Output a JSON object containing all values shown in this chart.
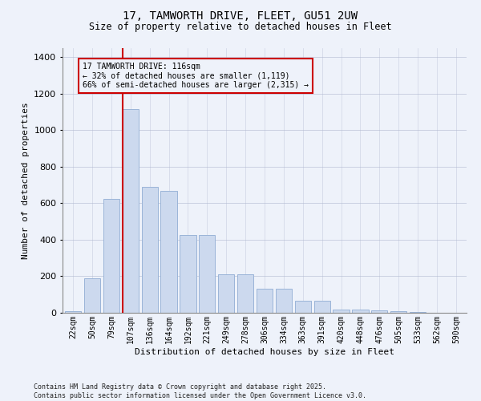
{
  "title1": "17, TAMWORTH DRIVE, FLEET, GU51 2UW",
  "title2": "Size of property relative to detached houses in Fleet",
  "xlabel": "Distribution of detached houses by size in Fleet",
  "ylabel": "Number of detached properties",
  "categories": [
    "22sqm",
    "50sqm",
    "79sqm",
    "107sqm",
    "136sqm",
    "164sqm",
    "192sqm",
    "221sqm",
    "249sqm",
    "278sqm",
    "306sqm",
    "334sqm",
    "363sqm",
    "391sqm",
    "420sqm",
    "448sqm",
    "476sqm",
    "505sqm",
    "533sqm",
    "562sqm",
    "590sqm"
  ],
  "values": [
    10,
    190,
    625,
    1115,
    690,
    670,
    425,
    425,
    210,
    210,
    130,
    130,
    65,
    65,
    18,
    18,
    12,
    7,
    4,
    2,
    2
  ],
  "bar_color": "#ccd9ee",
  "bar_edge_color": "#9ab4d8",
  "vline_x": 3,
  "vline_color": "#cc0000",
  "annotation_title": "17 TAMWORTH DRIVE: 116sqm",
  "annotation_line1": "← 32% of detached houses are smaller (1,119)",
  "annotation_line2": "66% of semi-detached houses are larger (2,315) →",
  "annotation_box_color": "#cc0000",
  "background_color": "#eef2fa",
  "footer1": "Contains HM Land Registry data © Crown copyright and database right 2025.",
  "footer2": "Contains public sector information licensed under the Open Government Licence v3.0.",
  "ylim": [
    0,
    1450
  ],
  "yticks": [
    0,
    200,
    400,
    600,
    800,
    1000,
    1200,
    1400
  ]
}
